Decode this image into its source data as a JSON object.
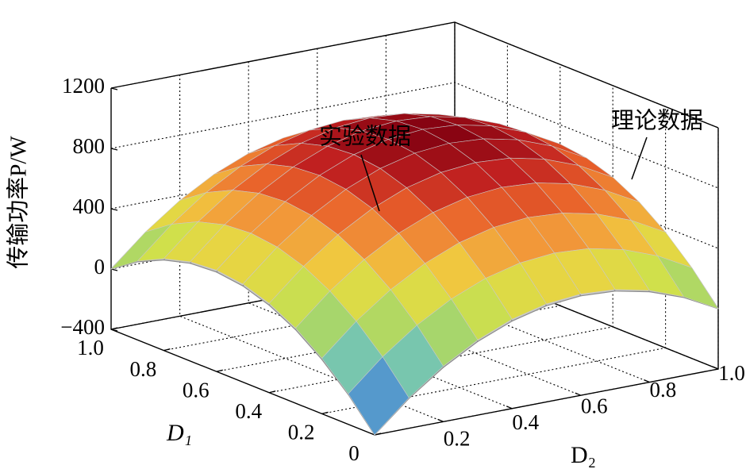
{
  "chart_data": {
    "type": "surface3d",
    "zlabel": "传输功率P/W",
    "xlabel": "D₂",
    "ylabel": "D₁",
    "x": [
      0,
      0.1,
      0.2,
      0.3,
      0.4,
      0.5,
      0.6,
      0.7,
      0.8,
      0.9,
      1
    ],
    "y": [
      0,
      0.1,
      0.2,
      0.3,
      0.4,
      0.5,
      0.6,
      0.7,
      0.8,
      0.9,
      1
    ],
    "xlim": [
      0,
      1
    ],
    "ylim": [
      0,
      1
    ],
    "zlim": [
      -400,
      1200
    ],
    "xticks": [
      0.2,
      0.4,
      0.6,
      0.8,
      {
        "value": 1,
        "label": "1.0"
      }
    ],
    "yticks": [
      0,
      0.2,
      0.4,
      0.6,
      0.8,
      {
        "value": 1,
        "label": "1.0"
      }
    ],
    "zticks": [
      {
        "value": -400,
        "label": "−400"
      },
      0,
      400,
      800,
      1200
    ],
    "grid": true,
    "series": [
      {
        "name": "实验数据",
        "colormap": [
          "#2b3a8f",
          "#4a7ec0",
          "#5fb4d8",
          "#7cc9a8",
          "#a8d66a",
          "#d2e04a",
          "#f0d040",
          "#f29a3a",
          "#e8602a",
          "#c02020",
          "#800010"
        ],
        "z": [
          [
            -400,
            -198,
            -32,
            98,
            192,
            250,
            272,
            258,
            208,
            122,
            0
          ],
          [
            -198,
            4,
            170,
            300,
            394,
            452,
            474,
            460,
            410,
            324,
            202
          ],
          [
            -32,
            170,
            336,
            466,
            560,
            618,
            640,
            626,
            576,
            490,
            368
          ],
          [
            98,
            300,
            466,
            596,
            690,
            748,
            770,
            756,
            706,
            620,
            498
          ],
          [
            192,
            394,
            560,
            690,
            784,
            842,
            864,
            850,
            800,
            714,
            592
          ],
          [
            250,
            452,
            618,
            748,
            842,
            900,
            922,
            908,
            858,
            772,
            650
          ],
          [
            272,
            474,
            640,
            770,
            864,
            922,
            944,
            930,
            880,
            794,
            672
          ],
          [
            258,
            460,
            626,
            756,
            850,
            908,
            930,
            916,
            866,
            780,
            658
          ],
          [
            208,
            410,
            576,
            706,
            800,
            858,
            880,
            866,
            816,
            730,
            608
          ],
          [
            122,
            324,
            490,
            620,
            714,
            772,
            794,
            780,
            730,
            644,
            522
          ],
          [
            0,
            202,
            368,
            498,
            592,
            650,
            672,
            658,
            608,
            522,
            400
          ]
        ]
      },
      {
        "name": "理论数据",
        "color": "#c8c8c8",
        "z": [
          [
            -400,
            -202,
            -40,
            88,
            180,
            238,
            260,
            248,
            200,
            118,
            0
          ],
          [
            -202,
            -4,
            158,
            286,
            378,
            436,
            458,
            446,
            398,
            316,
            198
          ],
          [
            -40,
            158,
            320,
            448,
            540,
            598,
            620,
            608,
            560,
            478,
            360
          ],
          [
            88,
            286,
            448,
            576,
            668,
            726,
            748,
            736,
            688,
            606,
            488
          ],
          [
            180,
            378,
            540,
            668,
            760,
            818,
            840,
            828,
            780,
            698,
            580
          ],
          [
            238,
            436,
            598,
            726,
            818,
            876,
            898,
            886,
            838,
            756,
            638
          ],
          [
            260,
            458,
            620,
            748,
            840,
            898,
            920,
            908,
            860,
            778,
            660
          ],
          [
            248,
            446,
            608,
            736,
            828,
            886,
            908,
            896,
            848,
            766,
            648
          ],
          [
            200,
            398,
            560,
            688,
            780,
            838,
            860,
            848,
            800,
            718,
            600
          ],
          [
            118,
            316,
            478,
            606,
            698,
            756,
            778,
            766,
            718,
            636,
            518
          ],
          [
            0,
            198,
            360,
            488,
            580,
            638,
            660,
            648,
            600,
            518,
            400
          ]
        ]
      }
    ]
  }
}
